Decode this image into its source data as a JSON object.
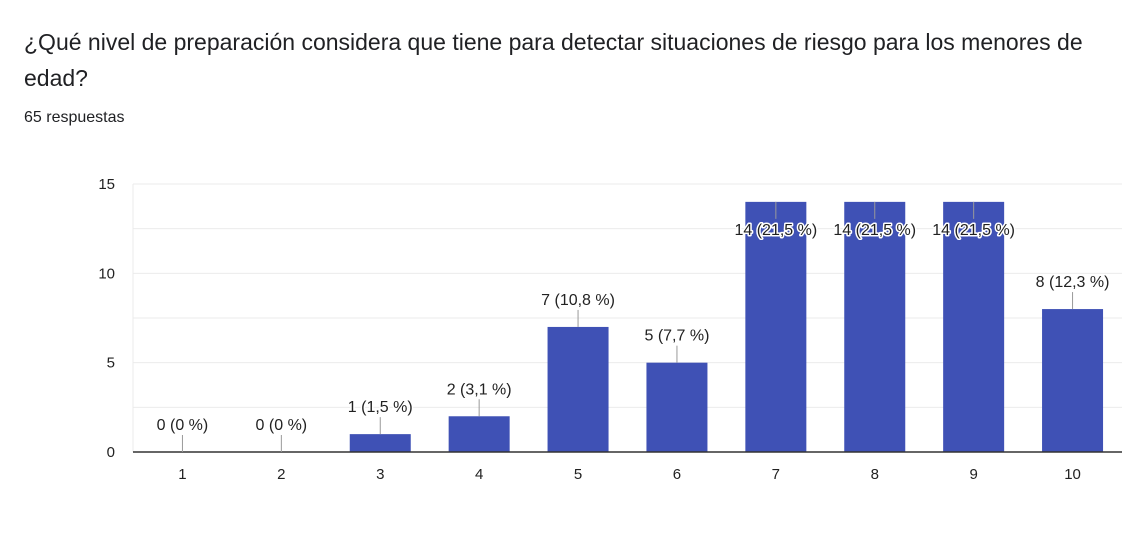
{
  "question": {
    "title": "¿Qué nivel de preparación considera que tiene para detectar situaciones de riesgo para los menores de edad?",
    "response_count": "65 respuestas"
  },
  "colors": {
    "bar": "#3f51b5",
    "grid": "#ebebeb",
    "axis": "#333333",
    "leader": "#999999"
  },
  "chart_data": {
    "type": "bar",
    "categories": [
      "1",
      "2",
      "3",
      "4",
      "5",
      "6",
      "7",
      "8",
      "9",
      "10"
    ],
    "values": [
      0,
      0,
      1,
      2,
      7,
      5,
      14,
      14,
      14,
      8
    ],
    "data_labels": [
      "0 (0 %)",
      "0 (0 %)",
      "1 (1,5 %)",
      "2 (3,1 %)",
      "7 (10,8 %)",
      "5 (7,7 %)",
      "14 (21,5 %)",
      "14 (21,5 %)",
      "14 (21,5 %)",
      "8 (12,3 %)"
    ],
    "y_ticks": [
      "0",
      "5",
      "10",
      "15"
    ],
    "ylim": [
      0,
      15
    ],
    "grid": true,
    "legend": "none"
  }
}
